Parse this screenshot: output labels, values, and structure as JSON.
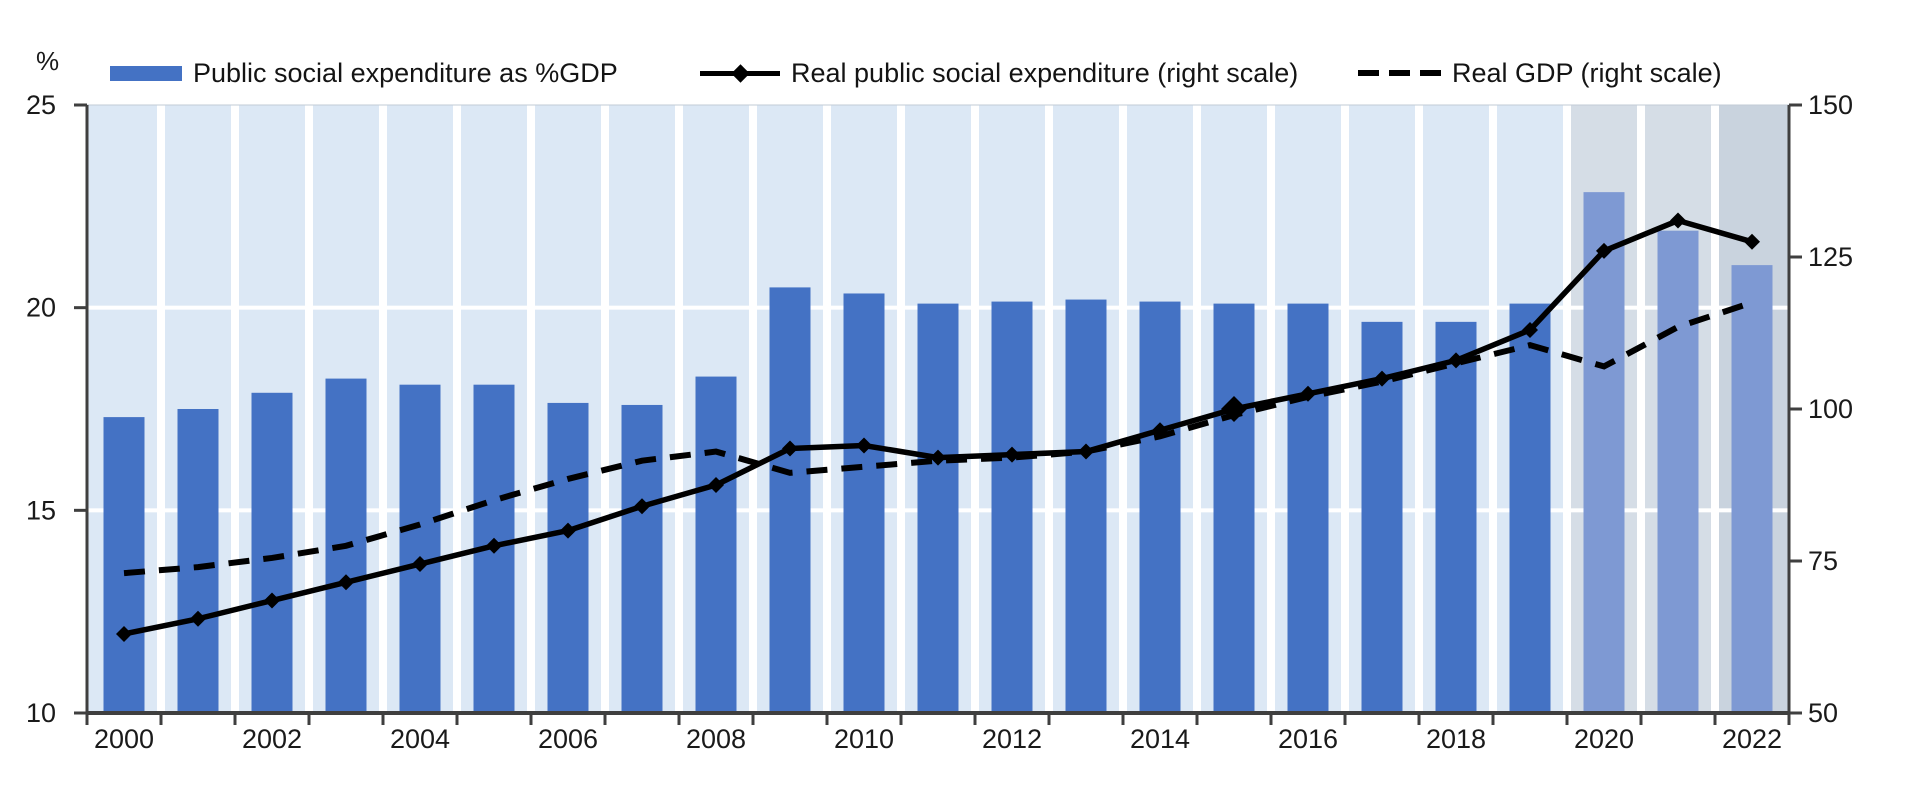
{
  "chart_data": {
    "type": "combo",
    "x": [
      2000,
      2001,
      2002,
      2003,
      2004,
      2005,
      2006,
      2007,
      2008,
      2009,
      2010,
      2011,
      2012,
      2013,
      2014,
      2015,
      2016,
      2017,
      2018,
      2019,
      2020,
      2021,
      2022
    ],
    "x_tick_labels": [
      "2000",
      "2002",
      "2004",
      "2006",
      "2008",
      "2010",
      "2012",
      "2014",
      "2016",
      "2018",
      "2020",
      "2022"
    ],
    "series": [
      {
        "name": "Public social expenditure as %GDP",
        "type": "bar",
        "axis": "left",
        "values": [
          17.3,
          17.5,
          17.9,
          18.25,
          18.1,
          18.1,
          17.65,
          17.6,
          18.3,
          20.5,
          20.35,
          20.1,
          20.15,
          20.2,
          20.15,
          20.1,
          20.1,
          19.65,
          19.65,
          20.1,
          22.85,
          21.9,
          21.05
        ],
        "light_bars_from_year": 2020
      },
      {
        "name": "Real public social expenditure (right scale)",
        "type": "line",
        "style": "solid-diamond",
        "axis": "right",
        "values": [
          63,
          65.5,
          68.5,
          71.5,
          74.5,
          77.5,
          80,
          84,
          87.5,
          93.5,
          94,
          92,
          92.5,
          93,
          96.5,
          100,
          102.5,
          105,
          108,
          113,
          126,
          131,
          127.5
        ],
        "highlight_year": 2015
      },
      {
        "name": "Real GDP (right scale)",
        "type": "line",
        "style": "dashed",
        "axis": "right",
        "values": [
          73,
          74,
          75.5,
          77.5,
          81,
          85,
          88.5,
          91.5,
          93,
          89.5,
          90.5,
          91.5,
          92,
          93,
          95.5,
          99,
          102,
          104.5,
          107.5,
          110.5,
          107,
          113.5,
          117.5
        ]
      }
    ],
    "left_axis": {
      "unit": "%",
      "min": 10,
      "max": 25,
      "ticks": [
        25,
        20,
        15,
        10
      ]
    },
    "right_axis": {
      "min": 50,
      "max": 150,
      "ticks": [
        150,
        125,
        100,
        75,
        50
      ]
    },
    "background_bands": [
      {
        "from": 2000,
        "to": 2019,
        "color_key": "plot_bg"
      },
      {
        "from": 2020,
        "to": 2021,
        "color_key": "plot_bg_estimate"
      },
      {
        "from": 2022,
        "to": 2022,
        "color_key": "plot_bg_projection"
      }
    ],
    "grid": "on",
    "legend_position": "top"
  },
  "colors": {
    "bar": "#4472C4",
    "bar_light": "#7E99D3",
    "plot_bg": "#DCE8F5",
    "plot_bg_estimate": "#D5DDE6",
    "plot_bg_projection": "#C9D3DE",
    "gridline": "#FFFFFF",
    "axis": "#3F3F3F",
    "plot_top_border": "#C2CBD6",
    "text": "#1A1A1A",
    "line": "#000000"
  }
}
